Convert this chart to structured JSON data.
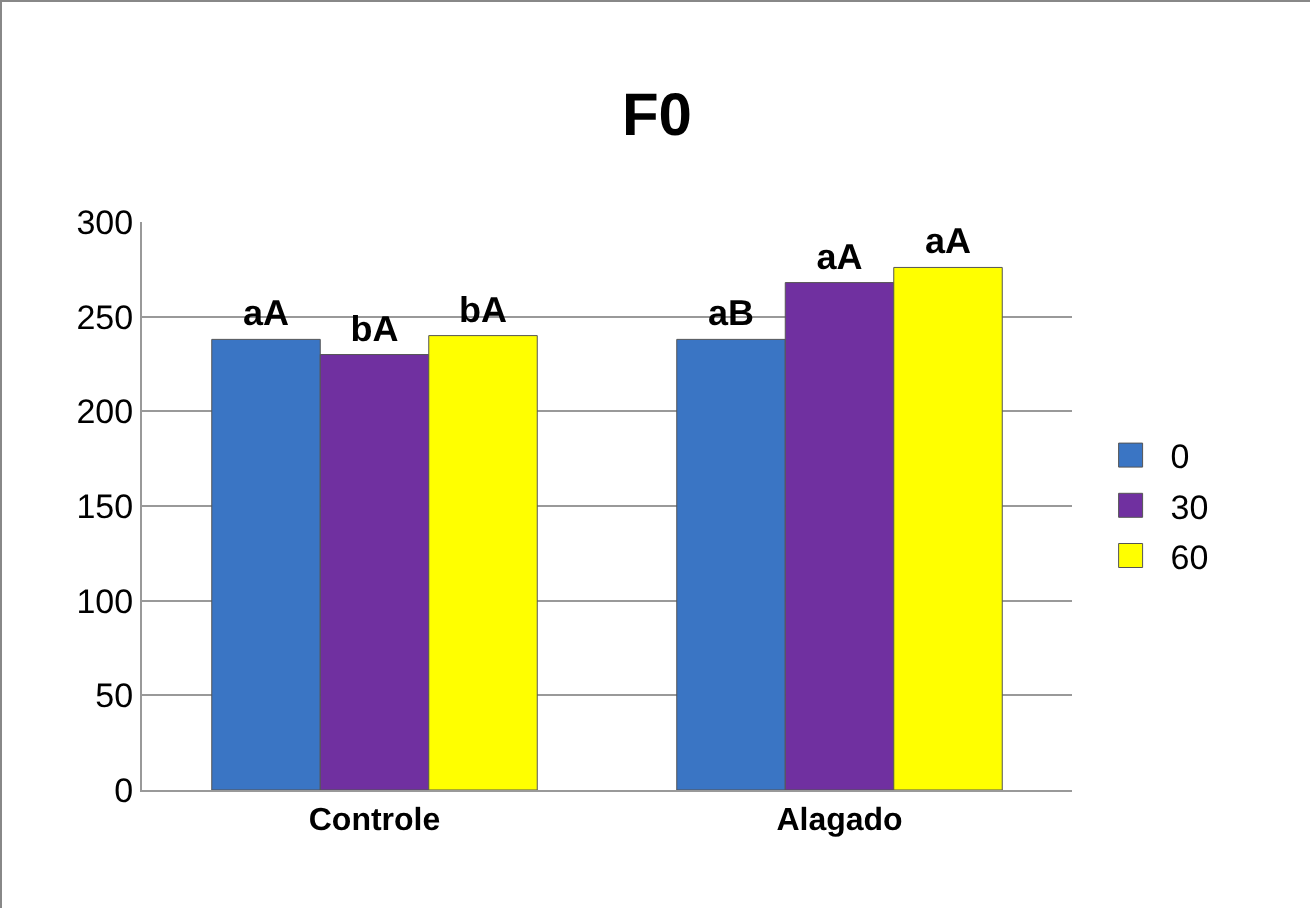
{
  "chart_data": {
    "type": "bar",
    "title": "F0",
    "categories": [
      "Controle",
      "Alagado"
    ],
    "series": [
      {
        "name": "0",
        "color": "#3a75c4",
        "values": [
          238,
          238
        ],
        "value_labels": [
          "aA",
          "aB"
        ]
      },
      {
        "name": "30",
        "color": "#7030a0",
        "values": [
          230,
          268
        ],
        "value_labels": [
          "bA",
          "aA"
        ]
      },
      {
        "name": "60",
        "color": "#ffff00",
        "values": [
          240,
          276
        ],
        "value_labels": [
          "bA",
          "aA"
        ]
      }
    ],
    "ylim": [
      0,
      300
    ],
    "yticks": [
      0,
      50,
      100,
      150,
      200,
      250,
      300
    ],
    "grid": "y",
    "legend": "right"
  }
}
